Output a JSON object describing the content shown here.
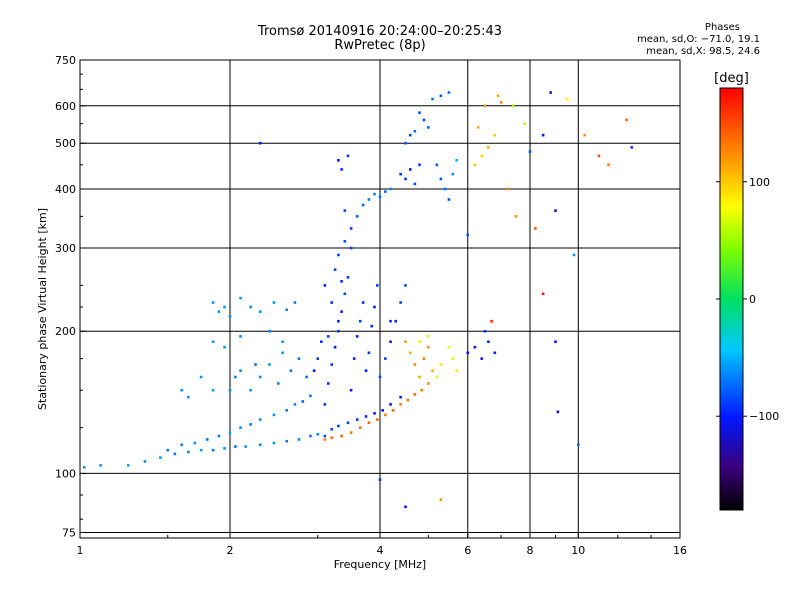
{
  "header": {
    "title_line1": "Tromsø 20140916 20:24:00–20:25:43",
    "title_line2": "RwPretec (8p)",
    "stats_title": "Phases",
    "stats_line1": "mean, sd,O: −71.0, 19.1",
    "stats_line2": "mean, sd,X: 98.5, 24.6"
  },
  "chart_data": {
    "type": "scatter",
    "title": "Tromsø 20140916 20:24:00–20:25:43",
    "xlabel": "Frequency [MHz]",
    "ylabel": "Stationary phase Virtual Height [km]",
    "x_scale": "log",
    "y_scale": "log",
    "xlim": [
      1,
      16
    ],
    "ylim": [
      73,
      750
    ],
    "x_ticks": [
      1,
      2,
      4,
      6,
      8,
      10,
      16
    ],
    "x_tick_labels": [
      "1",
      "2",
      "4",
      "6",
      "8",
      "10",
      "16"
    ],
    "y_ticks": [
      75,
      100,
      200,
      300,
      400,
      500,
      600,
      750
    ],
    "y_tick_labels": [
      "75",
      "100",
      "200",
      "300",
      "400",
      "500",
      "600",
      "750"
    ],
    "grid": true,
    "colorbar": {
      "label": "[deg]",
      "range": [
        -180,
        180
      ],
      "ticks": [
        -100,
        0,
        100
      ],
      "tick_labels": [
        "−100",
        "0",
        "100"
      ]
    },
    "series": [
      {
        "points": [
          [
            1.02,
            103,
            -60
          ],
          [
            1.1,
            104,
            -60
          ],
          [
            1.25,
            104,
            -55
          ],
          [
            1.35,
            106,
            -60
          ],
          [
            1.45,
            108,
            -60
          ],
          [
            1.55,
            110,
            -70
          ],
          [
            1.65,
            111,
            -65
          ],
          [
            1.75,
            112,
            -60
          ],
          [
            1.85,
            112,
            -70
          ],
          [
            1.95,
            113,
            -60
          ],
          [
            2.05,
            114,
            -70
          ],
          [
            2.15,
            114,
            -60
          ],
          [
            2.3,
            115,
            -65
          ],
          [
            2.45,
            116,
            -60
          ],
          [
            2.6,
            117,
            -70
          ],
          [
            2.75,
            118,
            -65
          ],
          [
            2.9,
            120,
            -70
          ],
          [
            3.0,
            121,
            -60
          ],
          [
            1.5,
            112,
            -70
          ],
          [
            1.6,
            115,
            -65
          ],
          [
            1.7,
            116,
            -60
          ],
          [
            1.8,
            118,
            -70
          ],
          [
            1.9,
            120,
            -65
          ],
          [
            2.0,
            122,
            -55
          ],
          [
            2.1,
            125,
            -60
          ],
          [
            2.2,
            127,
            -70
          ],
          [
            2.3,
            130,
            -65
          ],
          [
            2.45,
            133,
            -60
          ],
          [
            2.6,
            136,
            -70
          ],
          [
            2.7,
            140,
            -65
          ],
          [
            2.8,
            142,
            -75
          ],
          [
            2.9,
            146,
            -70
          ],
          [
            1.6,
            150,
            -60
          ],
          [
            1.65,
            145,
            -60
          ],
          [
            1.75,
            160,
            -60
          ],
          [
            1.85,
            150,
            -55
          ],
          [
            2.0,
            150,
            -60
          ],
          [
            2.05,
            160,
            -65
          ],
          [
            2.1,
            165,
            -60
          ],
          [
            2.2,
            150,
            -60
          ],
          [
            2.3,
            160,
            -65
          ],
          [
            2.4,
            170,
            -60
          ],
          [
            2.5,
            155,
            -65
          ],
          [
            2.55,
            180,
            -60
          ],
          [
            2.65,
            165,
            -70
          ],
          [
            2.75,
            175,
            -70
          ],
          [
            2.85,
            160,
            -75
          ],
          [
            1.85,
            230,
            -60
          ],
          [
            1.9,
            220,
            -60
          ],
          [
            1.95,
            225,
            -55
          ],
          [
            2.0,
            215,
            -60
          ],
          [
            2.1,
            235,
            -60
          ],
          [
            2.2,
            225,
            -65
          ],
          [
            2.3,
            220,
            -60
          ],
          [
            2.45,
            230,
            -60
          ],
          [
            2.6,
            222,
            -65
          ],
          [
            2.7,
            230,
            -70
          ],
          [
            1.85,
            190,
            -60
          ],
          [
            1.95,
            185,
            -60
          ],
          [
            2.1,
            195,
            -65
          ],
          [
            2.25,
            170,
            -70
          ],
          [
            2.4,
            200,
            -65
          ],
          [
            2.55,
            190,
            -60
          ],
          [
            3.1,
            120,
            -80
          ],
          [
            3.2,
            124,
            -85
          ],
          [
            3.3,
            126,
            -90
          ],
          [
            3.45,
            128,
            -85
          ],
          [
            3.6,
            130,
            -90
          ],
          [
            3.75,
            132,
            -95
          ],
          [
            3.9,
            134,
            -100
          ],
          [
            4.05,
            136,
            -105
          ],
          [
            4.2,
            140,
            -110
          ],
          [
            4.4,
            145,
            -100
          ],
          [
            3.1,
            118,
            130
          ],
          [
            3.2,
            119,
            135
          ],
          [
            3.35,
            120,
            140
          ],
          [
            3.5,
            122,
            130
          ],
          [
            3.65,
            125,
            135
          ],
          [
            3.8,
            128,
            140
          ],
          [
            3.95,
            130,
            135
          ],
          [
            4.1,
            133,
            130
          ],
          [
            4.25,
            136,
            140
          ],
          [
            4.4,
            140,
            130
          ],
          [
            4.55,
            143,
            135
          ],
          [
            4.7,
            147,
            140
          ],
          [
            4.85,
            150,
            130
          ],
          [
            5.0,
            155,
            120
          ],
          [
            3.1,
            140,
            -90
          ],
          [
            3.15,
            155,
            -95
          ],
          [
            3.2,
            170,
            -90
          ],
          [
            3.25,
            185,
            -100
          ],
          [
            3.3,
            200,
            -90
          ],
          [
            3.35,
            220,
            -95
          ],
          [
            3.4,
            240,
            -85
          ],
          [
            3.45,
            260,
            -90
          ],
          [
            3.5,
            150,
            -100
          ],
          [
            3.55,
            175,
            -95
          ],
          [
            3.6,
            195,
            -100
          ],
          [
            3.65,
            210,
            -90
          ],
          [
            3.7,
            230,
            -95
          ],
          [
            3.75,
            165,
            -100
          ],
          [
            3.8,
            180,
            -90
          ],
          [
            3.85,
            205,
            -95
          ],
          [
            3.9,
            225,
            -100
          ],
          [
            3.95,
            250,
            -90
          ],
          [
            4.0,
            160,
            -85
          ],
          [
            4.1,
            175,
            -90
          ],
          [
            4.2,
            190,
            -100
          ],
          [
            4.3,
            210,
            -95
          ],
          [
            4.4,
            230,
            -90
          ],
          [
            4.5,
            250,
            -85
          ],
          [
            3.0,
            175,
            -90
          ],
          [
            3.05,
            190,
            -95
          ],
          [
            2.95,
            165,
            -100
          ],
          [
            3.3,
            290,
            -90
          ],
          [
            3.4,
            310,
            -85
          ],
          [
            3.5,
            330,
            -90
          ],
          [
            3.6,
            350,
            -80
          ],
          [
            3.7,
            370,
            -75
          ],
          [
            3.8,
            380,
            -70
          ],
          [
            3.9,
            390,
            -65
          ],
          [
            4.0,
            385,
            -70
          ],
          [
            4.1,
            395,
            -75
          ],
          [
            4.2,
            400,
            -70
          ],
          [
            3.4,
            360,
            -85
          ],
          [
            3.5,
            300,
            -90
          ],
          [
            3.3,
            460,
            -100
          ],
          [
            3.35,
            440,
            -95
          ],
          [
            3.45,
            470,
            -90
          ],
          [
            4.4,
            430,
            -95
          ],
          [
            4.5,
            420,
            -90
          ],
          [
            4.6,
            440,
            -100
          ],
          [
            4.7,
            410,
            -85
          ],
          [
            4.8,
            450,
            -90
          ],
          [
            4.5,
            500,
            -80
          ],
          [
            4.6,
            520,
            -85
          ],
          [
            4.7,
            530,
            -75
          ],
          [
            4.8,
            580,
            -80
          ],
          [
            4.9,
            560,
            -85
          ],
          [
            5.0,
            540,
            -75
          ],
          [
            5.1,
            620,
            -70
          ],
          [
            5.3,
            630,
            -80
          ],
          [
            5.5,
            640,
            -75
          ],
          [
            5.2,
            450,
            -80
          ],
          [
            5.3,
            420,
            -85
          ],
          [
            5.4,
            400,
            -70
          ],
          [
            5.5,
            380,
            -80
          ],
          [
            5.6,
            430,
            -60
          ],
          [
            5.7,
            460,
            -50
          ],
          [
            2.3,
            500,
            -100
          ],
          [
            4.5,
            190,
            120
          ],
          [
            4.6,
            180,
            110
          ],
          [
            4.7,
            170,
            125
          ],
          [
            4.8,
            160,
            115
          ],
          [
            4.9,
            175,
            130
          ],
          [
            5.0,
            185,
            120
          ],
          [
            5.1,
            165,
            110
          ],
          [
            4.8,
            190,
            70
          ],
          [
            5.0,
            195,
            65
          ],
          [
            5.2,
            160,
            75
          ],
          [
            5.3,
            170,
            70
          ],
          [
            5.5,
            185,
            70
          ],
          [
            5.6,
            175,
            65
          ],
          [
            5.7,
            165,
            70
          ],
          [
            6.0,
            180,
            -110
          ],
          [
            6.2,
            185,
            -100
          ],
          [
            6.4,
            175,
            -105
          ],
          [
            6.6,
            190,
            -95
          ],
          [
            6.8,
            180,
            -100
          ],
          [
            6.2,
            450,
            100
          ],
          [
            6.4,
            470,
            95
          ],
          [
            6.6,
            490,
            110
          ],
          [
            6.8,
            520,
            100
          ],
          [
            6.5,
            600,
            120
          ],
          [
            6.9,
            630,
            115
          ],
          [
            7.0,
            610,
            130
          ],
          [
            6.3,
            540,
            110
          ],
          [
            7.4,
            600,
            50
          ],
          [
            7.8,
            550,
            60
          ],
          [
            8.0,
            480,
            -80
          ],
          [
            8.2,
            330,
            140
          ],
          [
            8.5,
            520,
            -100
          ],
          [
            8.8,
            640,
            -110
          ],
          [
            9.0,
            360,
            -120
          ],
          [
            9.5,
            620,
            80
          ],
          [
            9.8,
            290,
            -60
          ],
          [
            10.3,
            520,
            120
          ],
          [
            11.0,
            470,
            150
          ],
          [
            11.5,
            450,
            130
          ],
          [
            12.5,
            560,
            140
          ],
          [
            12.8,
            490,
            -90
          ],
          [
            9.0,
            190,
            -110
          ],
          [
            9.1,
            135,
            -120
          ],
          [
            10.0,
            115,
            -75
          ],
          [
            8.5,
            240,
            170
          ],
          [
            6.5,
            200,
            -95
          ],
          [
            6.7,
            210,
            165
          ],
          [
            7.2,
            400,
            130
          ],
          [
            7.5,
            350,
            120
          ],
          [
            6.0,
            320,
            -80
          ],
          [
            4.5,
            85,
            -100
          ],
          [
            4.0,
            97,
            -90
          ],
          [
            5.3,
            88,
            120
          ],
          [
            4.2,
            210,
            -95
          ],
          [
            3.1,
            250,
            -100
          ],
          [
            3.2,
            230,
            -95
          ],
          [
            3.25,
            270,
            -90
          ],
          [
            3.3,
            210,
            -100
          ],
          [
            3.35,
            255,
            -95
          ],
          [
            3.15,
            195,
            -90
          ]
        ]
      }
    ]
  }
}
